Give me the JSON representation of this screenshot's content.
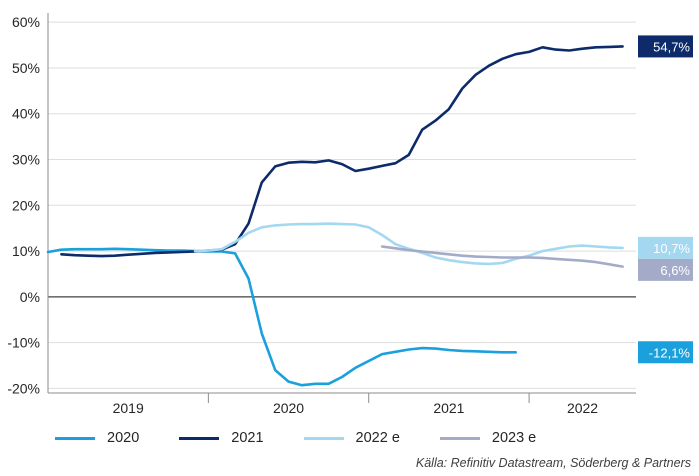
{
  "chart_data": {
    "type": "line",
    "y_ticks": [
      "60%",
      "50%",
      "40%",
      "30%",
      "20%",
      "10%",
      "0%",
      "-10%",
      "-20%"
    ],
    "ylim": [
      -21,
      62
    ],
    "year_labels": [
      "2019",
      "2020",
      "2021",
      "2022"
    ],
    "x_range": [
      "2019-01",
      "2022-09"
    ],
    "series": [
      {
        "name": "2020",
        "color": "#1aa0dc",
        "end_label": "-12,1%",
        "points": [
          [
            "2019-01",
            9.8
          ],
          [
            "2019-02",
            10.3
          ],
          [
            "2019-03",
            10.4
          ],
          [
            "2019-04",
            10.4
          ],
          [
            "2019-05",
            10.4
          ],
          [
            "2019-06",
            10.5
          ],
          [
            "2019-07",
            10.4
          ],
          [
            "2019-08",
            10.3
          ],
          [
            "2019-09",
            10.2
          ],
          [
            "2019-10",
            10.1
          ],
          [
            "2019-11",
            10.1
          ],
          [
            "2019-12",
            10.0
          ],
          [
            "2020-01",
            9.9
          ],
          [
            "2020-02",
            9.9
          ],
          [
            "2020-03",
            9.5
          ],
          [
            "2020-04",
            4.0
          ],
          [
            "2020-05",
            -8.0
          ],
          [
            "2020-06",
            -16.0
          ],
          [
            "2020-07",
            -18.5
          ],
          [
            "2020-08",
            -19.3
          ],
          [
            "2020-09",
            -19.0
          ],
          [
            "2020-10",
            -19.0
          ],
          [
            "2020-11",
            -17.5
          ],
          [
            "2020-12",
            -15.5
          ],
          [
            "2021-01",
            -14.0
          ],
          [
            "2021-02",
            -12.5
          ],
          [
            "2021-03",
            -12.0
          ],
          [
            "2021-04",
            -11.5
          ],
          [
            "2021-05",
            -11.2
          ],
          [
            "2021-06",
            -11.3
          ],
          [
            "2021-07",
            -11.6
          ],
          [
            "2021-08",
            -11.8
          ],
          [
            "2021-09",
            -11.9
          ],
          [
            "2021-10",
            -12.0
          ],
          [
            "2021-11",
            -12.1
          ],
          [
            "2021-12",
            -12.1
          ]
        ]
      },
      {
        "name": "2021",
        "color": "#0d2a6b",
        "end_label": "54,7%",
        "points": [
          [
            "2019-02",
            9.3
          ],
          [
            "2019-03",
            9.1
          ],
          [
            "2019-04",
            9.0
          ],
          [
            "2019-05",
            8.9
          ],
          [
            "2019-06",
            9.0
          ],
          [
            "2019-07",
            9.2
          ],
          [
            "2019-08",
            9.4
          ],
          [
            "2019-09",
            9.6
          ],
          [
            "2019-10",
            9.7
          ],
          [
            "2019-11",
            9.8
          ],
          [
            "2019-12",
            9.9
          ],
          [
            "2020-01",
            10.1
          ],
          [
            "2020-02",
            10.3
          ],
          [
            "2020-03",
            11.5
          ],
          [
            "2020-04",
            16.0
          ],
          [
            "2020-05",
            25.0
          ],
          [
            "2020-06",
            28.5
          ],
          [
            "2020-07",
            29.3
          ],
          [
            "2020-08",
            29.5
          ],
          [
            "2020-09",
            29.4
          ],
          [
            "2020-10",
            29.8
          ],
          [
            "2020-11",
            29.0
          ],
          [
            "2020-12",
            27.5
          ],
          [
            "2021-01",
            28.0
          ],
          [
            "2021-02",
            28.6
          ],
          [
            "2021-03",
            29.2
          ],
          [
            "2021-04",
            31.0
          ],
          [
            "2021-05",
            36.5
          ],
          [
            "2021-06",
            38.5
          ],
          [
            "2021-07",
            41.0
          ],
          [
            "2021-08",
            45.5
          ],
          [
            "2021-09",
            48.5
          ],
          [
            "2021-10",
            50.5
          ],
          [
            "2021-11",
            52.0
          ],
          [
            "2021-12",
            53.0
          ],
          [
            "2022-01",
            53.5
          ],
          [
            "2022-02",
            54.5
          ],
          [
            "2022-03",
            54.0
          ],
          [
            "2022-04",
            53.8
          ],
          [
            "2022-05",
            54.2
          ],
          [
            "2022-06",
            54.5
          ],
          [
            "2022-07",
            54.6
          ],
          [
            "2022-08",
            54.7
          ]
        ]
      },
      {
        "name": "2022 e",
        "color": "#a3d8f0",
        "end_label": "10,7%",
        "points": [
          [
            "2019-12",
            10.0
          ],
          [
            "2020-01",
            10.1
          ],
          [
            "2020-02",
            10.4
          ],
          [
            "2020-03",
            12.0
          ],
          [
            "2020-04",
            14.0
          ],
          [
            "2020-05",
            15.2
          ],
          [
            "2020-06",
            15.6
          ],
          [
            "2020-07",
            15.8
          ],
          [
            "2020-08",
            15.9
          ],
          [
            "2020-09",
            15.9
          ],
          [
            "2020-10",
            16.0
          ],
          [
            "2020-11",
            15.9
          ],
          [
            "2020-12",
            15.8
          ],
          [
            "2021-01",
            15.2
          ],
          [
            "2021-02",
            13.5
          ],
          [
            "2021-03",
            11.5
          ],
          [
            "2021-04",
            10.5
          ],
          [
            "2021-05",
            9.6
          ],
          [
            "2021-06",
            8.6
          ],
          [
            "2021-07",
            8.0
          ],
          [
            "2021-08",
            7.6
          ],
          [
            "2021-09",
            7.3
          ],
          [
            "2021-10",
            7.2
          ],
          [
            "2021-11",
            7.4
          ],
          [
            "2021-12",
            8.3
          ],
          [
            "2022-01",
            9.0
          ],
          [
            "2022-02",
            10.0
          ],
          [
            "2022-03",
            10.5
          ],
          [
            "2022-04",
            11.0
          ],
          [
            "2022-05",
            11.2
          ],
          [
            "2022-06",
            11.0
          ],
          [
            "2022-07",
            10.8
          ],
          [
            "2022-08",
            10.7
          ]
        ]
      },
      {
        "name": "2023 e",
        "color": "#a3abc9",
        "end_label": "6,6%",
        "points": [
          [
            "2021-02",
            11.0
          ],
          [
            "2021-03",
            10.6
          ],
          [
            "2021-04",
            10.2
          ],
          [
            "2021-05",
            9.9
          ],
          [
            "2021-06",
            9.6
          ],
          [
            "2021-07",
            9.3
          ],
          [
            "2021-08",
            9.0
          ],
          [
            "2021-09",
            8.8
          ],
          [
            "2021-10",
            8.7
          ],
          [
            "2021-11",
            8.6
          ],
          [
            "2021-12",
            8.6
          ],
          [
            "2022-01",
            8.6
          ],
          [
            "2022-02",
            8.5
          ],
          [
            "2022-03",
            8.3
          ],
          [
            "2022-04",
            8.1
          ],
          [
            "2022-05",
            7.9
          ],
          [
            "2022-06",
            7.6
          ],
          [
            "2022-07",
            7.1
          ],
          [
            "2022-08",
            6.6
          ]
        ]
      }
    ]
  },
  "source_text": "Källa: Refinitiv Datastream, Söderberg & Partners"
}
